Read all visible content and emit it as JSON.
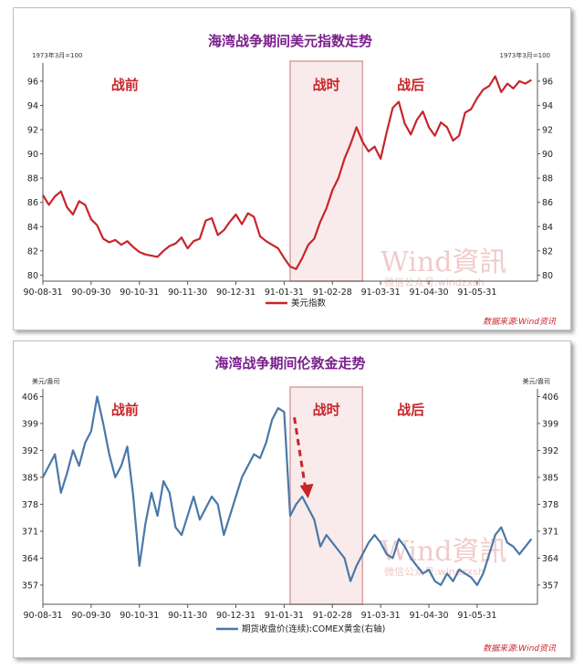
{
  "chart_data": [
    {
      "type": "line",
      "title": "海湾战争期间美元指数走势",
      "left_unit": "1973年3月=100",
      "right_unit": "1973年3月=100",
      "ylim": [
        79.5,
        97.5
      ],
      "yticks": [
        "80",
        "82",
        "84",
        "86",
        "88",
        "90",
        "92",
        "94",
        "96"
      ],
      "xticks": [
        "90-08-31",
        "90-09-30",
        "90-10-31",
        "90-11-30",
        "90-12-31",
        "91-01-31",
        "91-02-28",
        "91-03-31",
        "91-04-30",
        "91-05-31"
      ],
      "xlim": [
        0,
        41
      ],
      "phase_labels": {
        "before": "战前",
        "during": "战时",
        "after": "战后"
      },
      "war_period": [
        20.5,
        26.5
      ],
      "legend": "美元指数",
      "source": "数据来源:Wind资讯",
      "watermark": "Wind資訊",
      "watermark_sub": "微信公众号:windzxsh",
      "color": "#c8252a",
      "series": [
        {
          "name": "美元指数",
          "x": [
            0,
            0.5,
            1,
            1.5,
            2,
            2.5,
            3,
            3.5,
            4,
            4.5,
            5,
            5.5,
            6,
            6.5,
            7,
            7.5,
            8,
            8.5,
            9,
            9.5,
            10,
            10.5,
            11,
            11.5,
            12,
            12.5,
            13,
            13.5,
            14,
            14.5,
            15,
            15.5,
            16,
            16.5,
            17,
            17.5,
            18,
            18.5,
            19,
            19.5,
            20,
            20.5,
            21,
            21.5,
            22,
            22.5,
            23,
            23.5,
            24,
            24.5,
            25,
            25.5,
            26,
            26.5,
            27,
            27.5,
            28,
            28.5,
            29,
            29.5,
            30,
            30.5,
            31,
            31.5,
            32,
            32.5,
            33,
            33.5,
            34,
            34.5,
            35,
            35.5,
            36,
            36.5,
            37,
            37.5,
            38,
            38.5,
            39,
            39.5,
            40,
            40.5
          ],
          "values": [
            86.6,
            85.8,
            86.5,
            86.9,
            85.6,
            85.0,
            86.1,
            85.8,
            84.6,
            84.1,
            83.0,
            82.7,
            82.9,
            82.5,
            82.8,
            82.3,
            81.9,
            81.7,
            81.6,
            81.5,
            82.0,
            82.4,
            82.6,
            83.1,
            82.2,
            82.8,
            83.0,
            84.5,
            84.7,
            83.3,
            83.7,
            84.4,
            85.0,
            84.2,
            85.1,
            84.8,
            83.2,
            82.8,
            82.5,
            82.2,
            81.4,
            80.7,
            80.5,
            81.4,
            82.5,
            83.0,
            84.4,
            85.5,
            87.0,
            88.0,
            89.6,
            90.8,
            92.2,
            91.0,
            90.2,
            90.6,
            89.6,
            91.8,
            93.8,
            94.3,
            92.5,
            91.6,
            92.8,
            93.5,
            92.2,
            91.5,
            92.6,
            92.2,
            91.1,
            91.5,
            93.4,
            93.7,
            94.6,
            95.3,
            95.6,
            96.4,
            95.1,
            95.8,
            95.4,
            96.0,
            95.8,
            96.1
          ]
        }
      ]
    },
    {
      "type": "line",
      "title": "海湾战争期间伦敦金走势",
      "left_unit": "美元/盎司",
      "right_unit": "美元/盎司",
      "ylim": [
        352,
        408
      ],
      "yticks": [
        "357",
        "364",
        "371",
        "378",
        "385",
        "392",
        "399",
        "406"
      ],
      "xticks": [
        "90-08-31",
        "90-09-30",
        "90-10-31",
        "90-11-30",
        "90-12-31",
        "91-01-31",
        "91-02-28",
        "91-03-31",
        "91-04-30",
        "91-05-31"
      ],
      "xlim": [
        0,
        41
      ],
      "phase_labels": {
        "before": "战前",
        "during": "战时",
        "after": "战后"
      },
      "war_period": [
        20.5,
        26.5
      ],
      "legend": "期货收盘价(连续):COMEX黄金(右轴)",
      "source": "数据来源:Wind资讯",
      "watermark": "Wind資訊",
      "watermark_sub": "微信公众号:windzxsh",
      "color": "#4a78a8",
      "series": [
        {
          "name": "期货收盘价(连续):COMEX黄金(右轴)",
          "x": [
            0,
            0.5,
            1,
            1.5,
            2,
            2.5,
            3,
            3.5,
            4,
            4.5,
            5,
            5.5,
            6,
            6.5,
            7,
            7.5,
            8,
            8.5,
            9,
            9.5,
            10,
            10.5,
            11,
            11.5,
            12,
            12.5,
            13,
            13.5,
            14,
            14.5,
            15,
            15.5,
            16,
            16.5,
            17,
            17.5,
            18,
            18.5,
            19,
            19.5,
            20,
            20.5,
            21,
            21.5,
            22,
            22.5,
            23,
            23.5,
            24,
            24.5,
            25,
            25.5,
            26,
            26.5,
            27,
            27.5,
            28,
            28.5,
            29,
            29.5,
            30,
            30.5,
            31,
            31.5,
            32,
            32.5,
            33,
            33.5,
            34,
            34.5,
            35,
            35.5,
            36,
            36.5,
            37,
            37.5,
            38,
            38.5,
            39,
            39.5,
            40,
            40.5
          ],
          "values": [
            385,
            388,
            391,
            381,
            386,
            392,
            388,
            394,
            397,
            406,
            399,
            391,
            385,
            388,
            393,
            380,
            362,
            373,
            381,
            375,
            384,
            381,
            372,
            370,
            375,
            380,
            374,
            377,
            380,
            378,
            370,
            375,
            380,
            385,
            388,
            391,
            390,
            394,
            400,
            403,
            402,
            375,
            378,
            380,
            377,
            374,
            367,
            370,
            368,
            366,
            364,
            358,
            362,
            365,
            368,
            370,
            368,
            365,
            364,
            369,
            367,
            364,
            362,
            360,
            361,
            358,
            357,
            360,
            358,
            361,
            360,
            359,
            357,
            360,
            365,
            370,
            372,
            368,
            367,
            365,
            367,
            369
          ]
        }
      ]
    }
  ]
}
